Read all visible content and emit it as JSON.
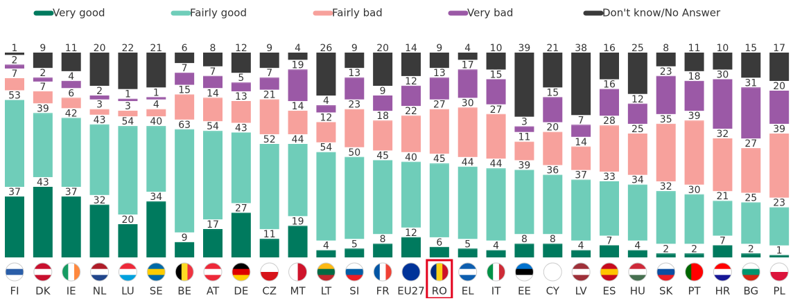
{
  "chart_data": {
    "type": "bar",
    "stacked": true,
    "categories": [
      "FI",
      "DK",
      "IE",
      "NL",
      "LU",
      "SE",
      "BE",
      "AT",
      "DE",
      "CZ",
      "MT",
      "LT",
      "SI",
      "FR",
      "EU27",
      "RO",
      "EL",
      "IT",
      "EE",
      "CY",
      "LV",
      "ES",
      "HU",
      "SK",
      "PT",
      "HR",
      "BG",
      "PL"
    ],
    "series": [
      {
        "name": "Very good",
        "color": "#007a5e",
        "values": [
          37,
          43,
          37,
          32,
          20,
          34,
          9,
          17,
          27,
          11,
          19,
          4,
          5,
          8,
          12,
          6,
          5,
          4,
          8,
          8,
          4,
          7,
          4,
          2,
          2,
          7,
          2,
          1
        ]
      },
      {
        "name": "Fairly good",
        "color": "#6fcdb9",
        "values": [
          53,
          39,
          42,
          43,
          54,
          40,
          63,
          54,
          43,
          52,
          44,
          54,
          50,
          45,
          40,
          45,
          44,
          44,
          39,
          36,
          37,
          33,
          34,
          32,
          30,
          21,
          25,
          23
        ]
      },
      {
        "name": "Fairly bad",
        "color": "#f7a19c",
        "values": [
          7,
          7,
          6,
          3,
          3,
          4,
          15,
          14,
          13,
          21,
          14,
          12,
          23,
          18,
          22,
          27,
          30,
          27,
          11,
          20,
          14,
          28,
          25,
          35,
          39,
          32,
          27,
          39
        ]
      },
      {
        "name": "Very bad",
        "color": "#9b59a6",
        "values": [
          2,
          2,
          4,
          2,
          1,
          1,
          7,
          7,
          5,
          7,
          19,
          4,
          13,
          9,
          12,
          13,
          17,
          15,
          3,
          15,
          7,
          16,
          12,
          23,
          18,
          30,
          31,
          20
        ]
      },
      {
        "name": "Don't know/No Answer",
        "color": "#3a3a3a",
        "values": [
          1,
          9,
          11,
          20,
          22,
          21,
          6,
          8,
          12,
          9,
          4,
          26,
          9,
          20,
          14,
          9,
          4,
          10,
          39,
          21,
          38,
          16,
          25,
          8,
          11,
          10,
          15,
          17
        ]
      }
    ]
  }
}
